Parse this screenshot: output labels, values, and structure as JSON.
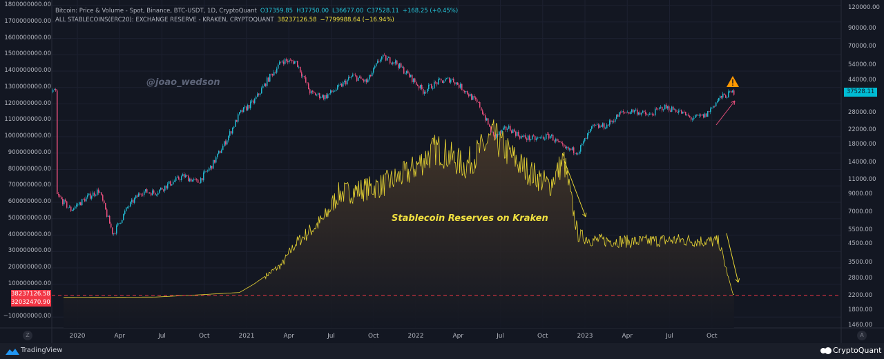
{
  "header": {
    "line1": {
      "title": "Bitcoin: Price & Volume - Spot, Binance, BTC-USDT, 1D, CryptoQuant",
      "open": "O37359.85",
      "high": "H37750.00",
      "low": "L36677.00",
      "close": "C37528.11",
      "change": "+168.25 (+0.45%)"
    },
    "line2": {
      "title": "ALL STABLECOINS(ERC20): EXCHANGE RESERVE - KRAKEN, CRYPTOQUANT",
      "value": "38237126.58",
      "change": "−7799988.64 (−16.94%)"
    }
  },
  "watermark": "@joao_wedson",
  "annotation": "Stablecoin Reserves on Kraken",
  "colors": {
    "background": "#131722",
    "up": "#26a69a",
    "up_candle": "#22b8d0",
    "down": "#e84f7c",
    "stablecoin": "#e8d534",
    "price_label": "#00bcd4",
    "reserve_label": "#f23645"
  },
  "left_axis": {
    "labels": [
      "1800000000.00",
      "1700000000.00",
      "1600000000.00",
      "1500000000.00",
      "1400000000.00",
      "1300000000.00",
      "1200000000.00",
      "1100000000.00",
      "1000000000.00",
      "900000000.00",
      "800000000.00",
      "700000000.00",
      "600000000.00",
      "500000000.00",
      "400000000.00",
      "300000000.00",
      "200000000.00",
      "100000000.00",
      "−100000000.00"
    ],
    "badge1": "38237126.58",
    "badge2": "32032470.90",
    "mode_button": "Z"
  },
  "right_axis": {
    "labels": [
      "120000.00",
      "90000.00",
      "70000.00",
      "54000.00",
      "44000.00",
      "28000.00",
      "22000.00",
      "18000.00",
      "14000.00",
      "11000.00",
      "9000.00",
      "7000.00",
      "5500.00",
      "4500.00",
      "3500.00",
      "2800.00",
      "2200.00",
      "1800.00",
      "1460.00"
    ],
    "price_badge": "37528.11",
    "mode_button": "A",
    "scale": "log"
  },
  "time_axis": {
    "labels": [
      "2020",
      "Apr",
      "Jul",
      "Oct",
      "2021",
      "Apr",
      "Jul",
      "Oct",
      "2022",
      "Apr",
      "Jul",
      "Oct",
      "2023",
      "Apr",
      "Jul",
      "Oct"
    ]
  },
  "footer": {
    "left_brand": "TradingView",
    "right_brand": "CryptoQuant"
  },
  "chart_data": [
    {
      "type": "candlestick",
      "name": "Bitcoin: Price & Volume - Spot, Binance, BTC-USDT, 1D",
      "axis": "right",
      "yscale": "log",
      "ylim": [
        1460,
        120000
      ],
      "monthly_close": [
        [
          "2019-11",
          9000
        ],
        [
          "2019-12",
          7300
        ],
        [
          "2020-01",
          8500
        ],
        [
          "2020-02",
          9600
        ],
        [
          "2020-03",
          5200
        ],
        [
          "2020-04",
          7500
        ],
        [
          "2020-05",
          9400
        ],
        [
          "2020-06",
          9300
        ],
        [
          "2020-07",
          10500
        ],
        [
          "2020-08",
          11700
        ],
        [
          "2020-09",
          10700
        ],
        [
          "2020-10",
          13500
        ],
        [
          "2020-11",
          19000
        ],
        [
          "2020-12",
          28000
        ],
        [
          "2021-01",
          33000
        ],
        [
          "2021-02",
          45000
        ],
        [
          "2021-03",
          58000
        ],
        [
          "2021-04",
          57000
        ],
        [
          "2021-05",
          37000
        ],
        [
          "2021-06",
          35000
        ],
        [
          "2021-07",
          40000
        ],
        [
          "2021-08",
          47000
        ],
        [
          "2021-09",
          43000
        ],
        [
          "2021-10",
          61000
        ],
        [
          "2021-11",
          57000
        ],
        [
          "2021-12",
          47000
        ],
        [
          "2022-01",
          38000
        ],
        [
          "2022-02",
          43000
        ],
        [
          "2022-03",
          45000
        ],
        [
          "2022-04",
          38000
        ],
        [
          "2022-05",
          31000
        ],
        [
          "2022-06",
          20000
        ],
        [
          "2022-07",
          23000
        ],
        [
          "2022-08",
          20000
        ],
        [
          "2022-09",
          19500
        ],
        [
          "2022-10",
          20500
        ],
        [
          "2022-11",
          17000
        ],
        [
          "2022-12",
          16500
        ],
        [
          "2023-01",
          23000
        ],
        [
          "2023-02",
          23500
        ],
        [
          "2023-03",
          28000
        ],
        [
          "2023-04",
          29000
        ],
        [
          "2023-05",
          27000
        ],
        [
          "2023-06",
          30500
        ],
        [
          "2023-07",
          29200
        ],
        [
          "2023-08",
          26000
        ],
        [
          "2023-09",
          27000
        ],
        [
          "2023-10",
          34500
        ],
        [
          "2023-11",
          37528.11
        ]
      ]
    },
    {
      "type": "area",
      "name": "ALL STABLECOINS(ERC20): EXCHANGE RESERVE - KRAKEN",
      "axis": "left",
      "ylim": [
        -150000000,
        1800000000
      ],
      "monthly": [
        [
          "2019-11",
          20000000
        ],
        [
          "2020-06",
          22000000
        ],
        [
          "2020-09",
          35000000
        ],
        [
          "2020-12",
          50000000
        ],
        [
          "2021-01",
          100000000
        ],
        [
          "2021-03",
          220000000
        ],
        [
          "2021-04",
          350000000
        ],
        [
          "2021-06",
          500000000
        ],
        [
          "2021-07",
          650000000
        ],
        [
          "2021-10",
          700000000
        ],
        [
          "2021-12",
          780000000
        ],
        [
          "2022-02",
          930000000
        ],
        [
          "2022-04",
          820000000
        ],
        [
          "2022-06",
          1000000000
        ],
        [
          "2022-08",
          820000000
        ],
        [
          "2022-10",
          700000000
        ],
        [
          "2022-11",
          860000000
        ],
        [
          "2022-12",
          400000000
        ],
        [
          "2023-01",
          370000000
        ],
        [
          "2023-04",
          360000000
        ],
        [
          "2023-07",
          370000000
        ],
        [
          "2023-10",
          360000000
        ],
        [
          "2023-11",
          38237126.58
        ]
      ]
    }
  ]
}
